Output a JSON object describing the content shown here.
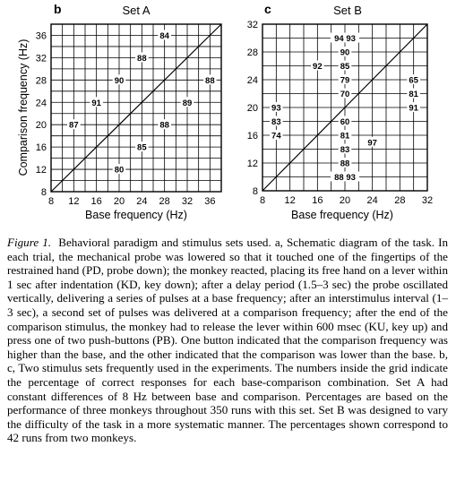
{
  "panels": [
    {
      "letter": "b",
      "title": "Set A",
      "x_ticks": [
        8,
        12,
        16,
        20,
        24,
        28,
        32,
        36
      ],
      "y_ticks": [
        8,
        12,
        16,
        20,
        24,
        28,
        32,
        36
      ],
      "points": [
        {
          "x": 28,
          "y": 36,
          "label": "84"
        },
        {
          "x": 24,
          "y": 32,
          "label": "88"
        },
        {
          "x": 20,
          "y": 28,
          "label": "90"
        },
        {
          "x": 36,
          "y": 28,
          "label": "88"
        },
        {
          "x": 32,
          "y": 24,
          "label": "89"
        },
        {
          "x": 16,
          "y": 24,
          "label": "91"
        },
        {
          "x": 28,
          "y": 20,
          "label": "88"
        },
        {
          "x": 12,
          "y": 20,
          "label": "87"
        },
        {
          "x": 24,
          "y": 16,
          "label": "85"
        },
        {
          "x": 20,
          "y": 12,
          "label": "80"
        }
      ]
    },
    {
      "letter": "c",
      "title": "Set B",
      "x_ticks": [
        8,
        12,
        16,
        20,
        24,
        28,
        32
      ],
      "y_ticks": [
        8,
        12,
        16,
        20,
        24,
        28,
        32
      ],
      "points": [
        {
          "x": 20,
          "y": 30,
          "label": "94 93"
        },
        {
          "x": 20,
          "y": 28,
          "label": "90"
        },
        {
          "x": 20,
          "y": 26,
          "label": "85"
        },
        {
          "x": 20,
          "y": 24,
          "label": "79"
        },
        {
          "x": 20,
          "y": 22,
          "label": "70"
        },
        {
          "x": 16,
          "y": 26,
          "label": "92"
        },
        {
          "x": 30,
          "y": 24,
          "label": "65"
        },
        {
          "x": 30,
          "y": 22,
          "label": "81"
        },
        {
          "x": 30,
          "y": 20,
          "label": "91"
        },
        {
          "x": 10,
          "y": 20,
          "label": "93"
        },
        {
          "x": 10,
          "y": 18,
          "label": "83"
        },
        {
          "x": 10,
          "y": 16,
          "label": "74"
        },
        {
          "x": 20,
          "y": 18,
          "label": "60"
        },
        {
          "x": 20,
          "y": 16,
          "label": "81"
        },
        {
          "x": 20,
          "y": 14,
          "label": "83"
        },
        {
          "x": 20,
          "y": 12,
          "label": "88"
        },
        {
          "x": 20,
          "y": 10,
          "label": "88 93"
        },
        {
          "x": 24,
          "y": 15,
          "label": "97"
        }
      ]
    }
  ],
  "shared_axes": {
    "y_title": "Comparison frequency (Hz)",
    "x_title": "Base frequency (Hz)"
  },
  "caption": {
    "label": "Figure 1.",
    "text": "Behavioral paradigm and stimulus sets used. a, Schematic diagram of the task. In each trial, the mechanical probe was lowered so that it touched one of the fingertips of the restrained hand (PD, probe down); the monkey reacted, placing its free hand on a lever within 1 sec after indentation (KD, key down); after a delay period (1.5–3 sec) the probe oscillated vertically, delivering a series of pulses at a base frequency; after an interstimulus interval (1–3 sec), a second set of pulses was delivered at a comparison frequency; after the end of the comparison stimulus, the monkey had to release the lever within 600 msec (KU, key up) and press one of two push-buttons (PB). One button indicated that the comparison frequency was higher than the base, and the other indicated that the comparison was lower than the base. b, c, Two stimulus sets frequently used in the experiments. The numbers inside the grid indicate the percentage of correct responses for each base-comparison combination. Set A had constant differences of 8 Hz between base and comparison. Percentages are based on the performance of three monkeys throughout 350 runs with this set. Set B was designed to vary the difficulty of the task in a more systematic manner. The percentages shown correspond to 42 runs from two monkeys."
  },
  "chart_data": [
    {
      "type": "table",
      "title": "Set A",
      "xlabel": "Base frequency (Hz)",
      "ylabel": "Comparison frequency (Hz)",
      "xlim": [
        8,
        38
      ],
      "ylim": [
        8,
        38
      ],
      "grid": true,
      "points": [
        {
          "base": 28,
          "comparison": 36,
          "percent_correct": 84
        },
        {
          "base": 24,
          "comparison": 32,
          "percent_correct": 88
        },
        {
          "base": 20,
          "comparison": 28,
          "percent_correct": 90
        },
        {
          "base": 36,
          "comparison": 28,
          "percent_correct": 88
        },
        {
          "base": 32,
          "comparison": 24,
          "percent_correct": 89
        },
        {
          "base": 16,
          "comparison": 24,
          "percent_correct": 91
        },
        {
          "base": 28,
          "comparison": 20,
          "percent_correct": 88
        },
        {
          "base": 12,
          "comparison": 20,
          "percent_correct": 87
        },
        {
          "base": 24,
          "comparison": 16,
          "percent_correct": 85
        },
        {
          "base": 20,
          "comparison": 12,
          "percent_correct": 80
        }
      ]
    },
    {
      "type": "table",
      "title": "Set B",
      "xlabel": "Base frequency (Hz)",
      "ylabel": "Comparison frequency (Hz)",
      "xlim": [
        8,
        32
      ],
      "ylim": [
        8,
        32
      ],
      "grid": true,
      "points": [
        {
          "base": 20,
          "comparison": 30,
          "percent_correct": [
            94,
            93
          ]
        },
        {
          "base": 20,
          "comparison": 28,
          "percent_correct": 90
        },
        {
          "base": 20,
          "comparison": 26,
          "percent_correct": 85
        },
        {
          "base": 20,
          "comparison": 24,
          "percent_correct": 79
        },
        {
          "base": 20,
          "comparison": 22,
          "percent_correct": 70
        },
        {
          "base": 16,
          "comparison": 26,
          "percent_correct": 92
        },
        {
          "base": 30,
          "comparison": 24,
          "percent_correct": 65
        },
        {
          "base": 30,
          "comparison": 22,
          "percent_correct": 81
        },
        {
          "base": 30,
          "comparison": 20,
          "percent_correct": 91
        },
        {
          "base": 10,
          "comparison": 20,
          "percent_correct": 93
        },
        {
          "base": 10,
          "comparison": 18,
          "percent_correct": 83
        },
        {
          "base": 10,
          "comparison": 16,
          "percent_correct": 74
        },
        {
          "base": 20,
          "comparison": 18,
          "percent_correct": 60
        },
        {
          "base": 20,
          "comparison": 16,
          "percent_correct": 81
        },
        {
          "base": 20,
          "comparison": 14,
          "percent_correct": 83
        },
        {
          "base": 20,
          "comparison": 12,
          "percent_correct": 88
        },
        {
          "base": 20,
          "comparison": 10,
          "percent_correct": [
            88,
            93
          ]
        },
        {
          "base": 24,
          "comparison": 15,
          "percent_correct": 97
        }
      ]
    }
  ]
}
